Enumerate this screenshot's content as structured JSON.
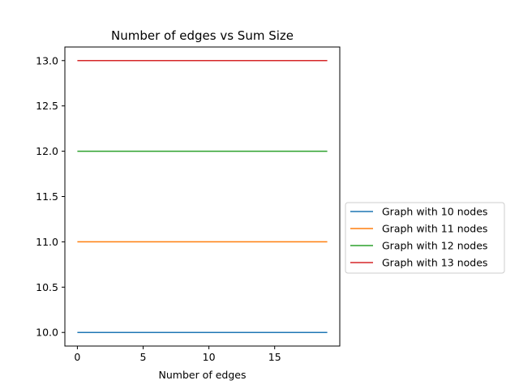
{
  "chart_data": {
    "type": "line",
    "title": "Number of edges vs Sum Size",
    "xlabel": "Number of edges",
    "ylabel": "",
    "xlim": [
      -0.95,
      19.95
    ],
    "ylim": [
      9.85,
      13.15
    ],
    "xticks": [
      0,
      5,
      10,
      15
    ],
    "xtick_labels": [
      "0",
      "5",
      "10",
      "15"
    ],
    "yticks": [
      10.0,
      10.5,
      11.0,
      11.5,
      12.0,
      12.5,
      13.0
    ],
    "ytick_labels": [
      "10.0",
      "10.5",
      "11.0",
      "11.5",
      "12.0",
      "12.5",
      "13.0"
    ],
    "grid": false,
    "legend_position": "outside right, center",
    "x": [
      0,
      1,
      2,
      3,
      4,
      5,
      6,
      7,
      8,
      9,
      10,
      11,
      12,
      13,
      14,
      15,
      16,
      17,
      18,
      19
    ],
    "series": [
      {
        "name": "Graph with 10 nodes",
        "color": "#1f77b4",
        "values": [
          10,
          10,
          10,
          10,
          10,
          10,
          10,
          10,
          10,
          10,
          10,
          10,
          10,
          10,
          10,
          10,
          10,
          10,
          10,
          10
        ]
      },
      {
        "name": "Graph with 11 nodes",
        "color": "#ff7f0e",
        "values": [
          11,
          11,
          11,
          11,
          11,
          11,
          11,
          11,
          11,
          11,
          11,
          11,
          11,
          11,
          11,
          11,
          11,
          11,
          11,
          11
        ]
      },
      {
        "name": "Graph with 12 nodes",
        "color": "#2ca02c",
        "values": [
          12,
          12,
          12,
          12,
          12,
          12,
          12,
          12,
          12,
          12,
          12,
          12,
          12,
          12,
          12,
          12,
          12,
          12,
          12,
          12
        ]
      },
      {
        "name": "Graph with 13 nodes",
        "color": "#d62728",
        "values": [
          13,
          13,
          13,
          13,
          13,
          13,
          13,
          13,
          13,
          13,
          13,
          13,
          13,
          13,
          13,
          13,
          13,
          13,
          13,
          13
        ]
      }
    ]
  }
}
